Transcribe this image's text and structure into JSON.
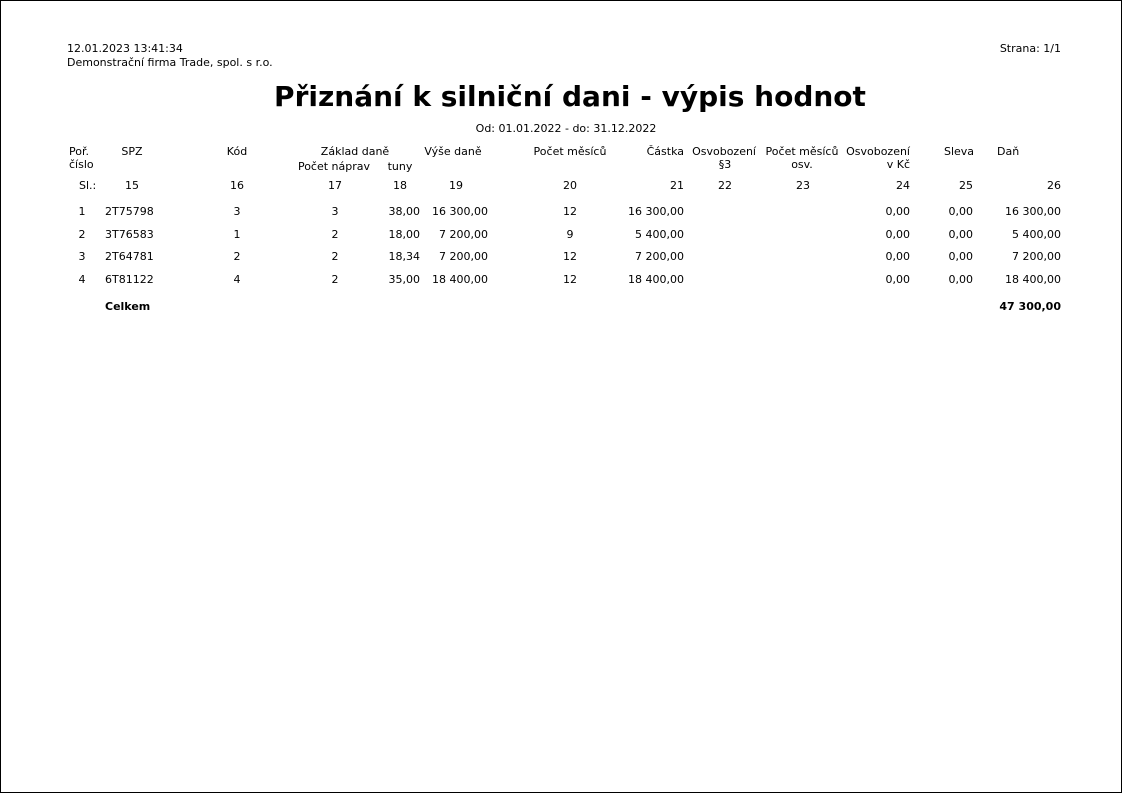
{
  "header": {
    "datetime": "12.01.2023  13:41:34",
    "company": "Demonstrační firma Trade, spol. s r.o.",
    "page": "Strana: 1/1"
  },
  "title": "Přiznání k silniční dani - výpis hodnot",
  "period": "Od: 01.01.2022 - do: 31.12.2022",
  "columns": {
    "por": [
      "Poř.",
      "číslo"
    ],
    "spz": "SPZ",
    "kod": "Kód",
    "zaklad": "Základ daně",
    "naprav": "Počet náprav",
    "tuny": "tuny",
    "vyse": "Výše daně",
    "mesicu": "Počet měsíců",
    "castka": "Částka",
    "osv3": [
      "Osvobození",
      "§3"
    ],
    "mesicu_osv": [
      "Počet měsíců",
      "osv."
    ],
    "osv_kc": [
      "Osvobození",
      "v Kč"
    ],
    "sleva": "Sleva",
    "dan": "Daň"
  },
  "line_numbers": [
    "Sl.:",
    "15",
    "16",
    "17",
    "18",
    "19",
    "20",
    "21",
    "22",
    "23",
    "24",
    "25",
    "26"
  ],
  "rows": [
    [
      "1",
      "2T75798",
      "3",
      "3",
      "38,00",
      "16 300,00",
      "12",
      "16 300,00",
      "",
      "",
      "0,00",
      "0,00",
      "16 300,00"
    ],
    [
      "2",
      "3T76583",
      "1",
      "2",
      "18,00",
      "7 200,00",
      "9",
      "5 400,00",
      "",
      "",
      "0,00",
      "0,00",
      "5 400,00"
    ],
    [
      "3",
      "2T64781",
      "2",
      "2",
      "18,34",
      "7 200,00",
      "12",
      "7 200,00",
      "",
      "",
      "0,00",
      "0,00",
      "7 200,00"
    ],
    [
      "4",
      "6T81122",
      "4",
      "2",
      "35,00",
      "18 400,00",
      "12",
      "18 400,00",
      "",
      "",
      "0,00",
      "0,00",
      "18 400,00"
    ]
  ],
  "total": {
    "label": "Celkem",
    "value": "47 300,00"
  }
}
